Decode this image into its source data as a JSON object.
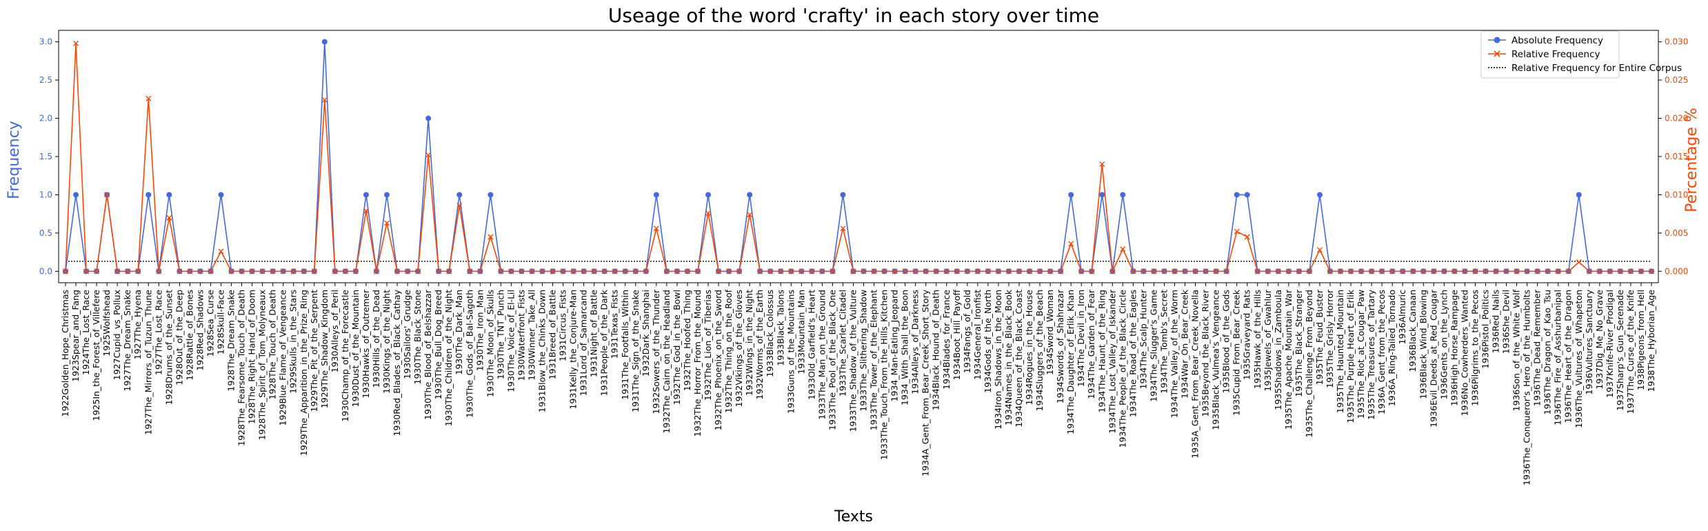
{
  "chart_data": {
    "type": "line",
    "title": "Useage of the word 'crafty' in each story over time",
    "xlabel": "Texts",
    "ylabel_left": "Frequency",
    "ylabel_right": "Percentage %",
    "ylim_left": [
      -0.15,
      3.15
    ],
    "ylim_right": [
      -0.0015,
      0.0315
    ],
    "yticks_left": [
      "0.0",
      "0.5",
      "1.0",
      "1.5",
      "2.0",
      "2.5",
      "3.0"
    ],
    "yticks_right": [
      "0.000",
      "0.005",
      "0.010",
      "0.015",
      "0.020",
      "0.025",
      "0.030"
    ],
    "legend_position": "upper-right",
    "grid": false,
    "colors": {
      "absolute": "#4169e1",
      "relative": "#ff4500",
      "corpus": "#000000"
    },
    "categories": [
      "1922Golden_Hope_Christmas",
      "1923Spear_and_Fang",
      "1924The_Lost_Race",
      "1925In_the_Forest_of_Villefere",
      "1925Wolfshead",
      "1927Cupid_vs_Pollux",
      "1927The_Dream_Snake",
      "1927The_Hyena",
      "1927The_Mirrors_of_Tuzun_Thune",
      "1927The_Lost_Race",
      "1928Drums_of_the_Sunset",
      "1928Out_of_the_Deep",
      "1928Rattle_of_Bones",
      "1928Red_Shadows",
      "1928Sea_Curse",
      "1928Skull-Face",
      "1928The_Dream_Snake",
      "1928The_Fearsome_Touch_of_Death",
      "1928The_Right_Hand_of_Doom",
      "1928The_Spirit_of_Tom_Molyneaux",
      "1928The_Touch_of_Death",
      "1929Blue_Flame_of_Vengeance",
      "1929Skulls_in_the_Stars",
      "1929The_Apparition_in_the_Prize_Ring",
      "1929The_Pit_of_the_Serpent",
      "1929The_Shadow_Kingdom",
      "1930Alleys_of_Peril",
      "1930Champ_of_the_Forecastle",
      "1930Dust_of_the_Mountain",
      "1930Hawks_of_Outremer",
      "1930Hills_of_the_Dead",
      "1930Kings_of_the_Night",
      "1930Red_Blades_of_Black_Cathay",
      "1930Sailors'_Grudge",
      "1930The_Black_Stone",
      "1930The_Blood_of_Belshazzar",
      "1930The_Bull_Dog_Breed",
      "1930The_Children_of_the_Night",
      "1930The_Dark_Man",
      "1930The_Gods_of_Bal-Sagoth",
      "1930The_Iron_Man",
      "1930The_Moon_of_Skulls",
      "1930The_TNT_Punch",
      "1930The_Voice_of_El-Lil",
      "1930Waterfront_Fists",
      "1930Winner_Take_All",
      "1931Blow_the_Chinks_Down",
      "1931Breed_of_Battle",
      "1931Circus_Fists",
      "1931Kelly_the_Conjure-Man",
      "1931Lord_of_Samarcand",
      "1931Night_of_Battle",
      "1931People_of_the_Dark",
      "1931Texas_Fists",
      "1931The_Footfalls_Within",
      "1931The_Sign_of_the_Snake",
      "1932Dark_Shanghai",
      "1932Sowers_of_the_Thunder",
      "1932The_Cairn_on_the_Headland",
      "1932The_God_in_the_Bowl",
      "1932The_Hoofed_Thing",
      "1932The_Horror_From_the_Mound",
      "1932The_Lion_of_Tiberias",
      "1932The_Phoenix_on_the_Sword",
      "1932The_Thing_on_the_Roof",
      "1932Vikings_of_the_Gloves",
      "1932Wings_in_the_Night",
      "1932Worms_of_the_Earth",
      "1933Black_Colossus",
      "1933Black_Talons",
      "1933Guns_of_the_Mountains",
      "1933Mountain_Man",
      "1933Old_Garfield's_Heart",
      "1933The_Man_on_the_Ground",
      "1933The_Pool_of_the_Black_One",
      "1933The_Scarlet_Citadel",
      "1933The_Shadow_of_the_Vulture",
      "1933The_Slithering_Shadow",
      "1933The_Tower_of_the_Elephant",
      "1933The_Touch_From_the_Hills_Kitchen",
      "1934_Man-Eating_Jeopard",
      "1934_With_Shall_the_Boon",
      "1934Alleys_of_Darkness",
      "1934A_Gent_From_Bear_Creek_Short_Story",
      "1934Black_Hound_of_Death",
      "1934Blades_for_France",
      "1934Boot_Hill_Payoff",
      "1934Fangs_of_Gold",
      "1934General_Ironfist",
      "1934Gods_of_the_North",
      "1934Iron_Shadows_in_the_Moon",
      "1934Names_in_the_Black_Book",
      "1934Queen_of_the_Black_Coast",
      "1934Rogues_in_the_House",
      "1934Sluggers_of_the_Beach",
      "1934Sword_Woman",
      "1934Swords_of_Shahrazar",
      "1934The_Daughter_of_Erlik_Khan",
      "1934The_Devil_in_Iron",
      "1934The_Garden_of_Fear",
      "1934The_Haunt_of_the_Ring",
      "1934The_Lost_Valley_of_Iskander",
      "1934The_People_of_the_Black_Circle",
      "1934The_Road_of_the_Eagles",
      "1934The_Scalp_Hunter",
      "1934The_Slugger's_Game",
      "1934The_Tomb's_Secret",
      "1934The_Valley_of_the_Worm",
      "1934War_On_Bear_Creek",
      "1935A_Gent_From_Bear_Creek_Novella",
      "1935Beyond_the_Black_River",
      "1935Black_Vulmea's_Vengeance",
      "1935Blood_of_the_Gods",
      "1935Cupid_From_Bear_Creek",
      "1935Graveyard_Rats",
      "1935Hawk_of_the_Hills",
      "1935Jewels_of_Gwahlur",
      "1935Shadows_in_Zamboula",
      "1935The_Apache_Mountain_War",
      "1935The_Black_Stranger",
      "1935The_Challenge_From_Beyond",
      "1935The_Feud_Buster",
      "1935The_Grisly_Horror",
      "1935The_Haunted_Mountain",
      "1935The_Purple_Heart_of_Erlik",
      "1935The_Riot_at_Cougar_Paw",
      "1935The_Treasures_of_Tartary",
      "1936A_Gent_from_the_Pecos",
      "1936A_Ring-Tailed_Tornado",
      "1936Almuric",
      "1936Black_Canaan",
      "1936Black_Wind_Blowing",
      "1936Evil_Deeds_at_Red_Cougar",
      "1936Gents_on_the_Lynch",
      "1936High_Horse_Rampage",
      "1936No_Cowherders_Wanted",
      "1936Pilgrims_to_the_Pecos",
      "1936Pistol_Politics",
      "1936Red_Nails",
      "1936She_Devil",
      "1936Son_of_the_White_Wolf",
      "1936The_Conqueror's_Hero_of_the_Humbolts",
      "1936The_Dead_Remember",
      "1936The_Dragon_of_Kao_Tsu",
      "1936The_Fire_of_Asshurbanipal",
      "1936The_Heart_of_the_Dragon",
      "1936The_Vultures_of_Whapeton",
      "1936Vultures_Sanctuary",
      "1937Dig_Me_No_Grave",
      "1937Knife-River_Prodigal",
      "1937Sharp's_Gun_Serenade",
      "1937The_Curse_of_the_Knife",
      "1938Pigeons_from_Hell",
      "1938The_Hyborian_Age"
    ],
    "series": [
      {
        "name": "Absolute Frequency",
        "values": [
          0,
          1,
          0,
          0,
          1,
          0,
          0,
          0,
          1,
          0,
          1,
          0,
          0,
          0,
          0,
          1,
          0,
          0,
          0,
          0,
          0,
          0,
          0,
          0,
          0,
          3,
          0,
          0,
          0,
          1,
          0,
          1,
          0,
          0,
          0,
          2,
          0,
          0,
          1,
          0,
          0,
          1,
          0,
          0,
          0,
          0,
          0,
          0,
          0,
          0,
          0,
          0,
          0,
          0,
          0,
          0,
          0,
          1,
          0,
          0,
          0,
          0,
          1,
          0,
          0,
          0,
          1,
          0,
          0,
          0,
          0,
          0,
          0,
          0,
          0,
          1,
          0,
          0,
          0,
          0,
          0,
          0,
          0,
          0,
          0,
          0,
          0,
          0,
          0,
          0,
          0,
          0,
          0,
          0,
          0,
          0,
          0,
          1,
          0,
          0,
          1,
          0,
          1,
          0,
          0,
          0,
          0,
          0,
          0,
          0,
          0,
          0,
          0,
          1,
          1,
          0,
          0,
          0,
          0,
          0,
          0,
          1,
          0,
          0,
          0,
          0,
          0,
          0,
          0,
          0,
          0,
          0,
          0,
          0,
          0,
          0,
          0,
          0,
          0,
          0,
          0,
          0,
          0,
          0,
          0,
          0,
          1,
          0,
          0,
          0,
          0,
          0,
          0,
          0
        ]
      },
      {
        "name": "Relative Frequency",
        "values": [
          0,
          0.0298,
          0,
          0,
          0.01,
          0,
          0,
          0,
          0.0226,
          0,
          0.007,
          0,
          0,
          0,
          0,
          0.0026,
          0,
          0,
          0,
          0,
          0,
          0,
          0,
          0,
          0,
          0.0224,
          0,
          0,
          0,
          0.0079,
          0,
          0.0063,
          0,
          0,
          0,
          0.0152,
          0,
          0,
          0.0086,
          0,
          0,
          0.0045,
          0,
          0,
          0,
          0,
          0,
          0,
          0,
          0,
          0,
          0,
          0,
          0,
          0,
          0,
          0,
          0.0056,
          0,
          0,
          0,
          0,
          0.0076,
          0,
          0,
          0,
          0.0074,
          0,
          0,
          0,
          0,
          0,
          0,
          0,
          0,
          0.0056,
          0,
          0,
          0,
          0,
          0,
          0,
          0,
          0,
          0,
          0,
          0,
          0,
          0,
          0,
          0,
          0,
          0,
          0,
          0,
          0,
          0,
          0.0036,
          0,
          0,
          0.014,
          0,
          0.0029,
          0,
          0,
          0,
          0,
          0,
          0,
          0,
          0,
          0,
          0,
          0.0052,
          0.0045,
          0,
          0,
          0,
          0,
          0,
          0,
          0.0028,
          0,
          0,
          0,
          0,
          0,
          0,
          0,
          0,
          0,
          0,
          0,
          0,
          0,
          0,
          0,
          0,
          0,
          0,
          0,
          0,
          0,
          0,
          0,
          0,
          0.0012,
          0,
          0,
          0,
          0,
          0,
          0,
          0
        ]
      },
      {
        "name": "Relative Frequency for Entire Corpus",
        "value": 0.0013
      }
    ]
  }
}
